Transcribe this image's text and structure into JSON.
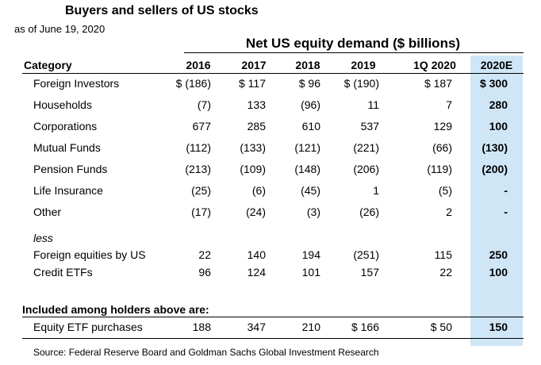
{
  "title": "Buyers and sellers of US stocks",
  "subtitle": "as of June 19, 2020",
  "group_header": "Net US equity demand ($ billions)",
  "category_header": "Category",
  "columns": [
    "2016",
    "2017",
    "2018",
    "2019",
    "1Q 2020",
    "2020E"
  ],
  "rows": [
    {
      "label": "Foreign Investors",
      "values": [
        "$ (186)",
        "$ 117",
        "$ 96",
        "$ (190)",
        "$ 187",
        "$ 300"
      ]
    },
    {
      "label": "Households",
      "values": [
        "(7)",
        "133",
        "(96)",
        "11",
        "7",
        "280"
      ]
    },
    {
      "label": "Corporations",
      "values": [
        "677",
        "285",
        "610",
        "537",
        "129",
        "100"
      ]
    },
    {
      "label": "Mutual Funds",
      "values": [
        "(112)",
        "(133)",
        "(121)",
        "(221)",
        "(66)",
        "(130)"
      ]
    },
    {
      "label": "Pension Funds",
      "values": [
        "(213)",
        "(109)",
        "(148)",
        "(206)",
        "(119)",
        "(200)"
      ]
    },
    {
      "label": "Life Insurance",
      "values": [
        "(25)",
        "(6)",
        "(45)",
        "1",
        "(5)",
        "-"
      ]
    },
    {
      "label": "Other",
      "values": [
        "(17)",
        "(24)",
        "(3)",
        "(26)",
        "2",
        "-"
      ]
    }
  ],
  "less_label": "less",
  "less_rows": [
    {
      "label": "Foreign equities by US",
      "values": [
        "22",
        "140",
        "194",
        "(251)",
        "115",
        "250"
      ]
    },
    {
      "label": "Credit ETFs",
      "values": [
        "96",
        "124",
        "101",
        "157",
        "22",
        "100"
      ]
    }
  ],
  "included_header": "Included among holders above are:",
  "included_rows": [
    {
      "label": "Equity ETF purchases",
      "values": [
        "188",
        "347",
        "210",
        "$ 166",
        "$ 50",
        "150"
      ]
    }
  ],
  "source": "Source:  Federal Reserve Board and Goldman Sachs Global Investment Research",
  "colors": {
    "highlight": "#cfe6f7"
  }
}
